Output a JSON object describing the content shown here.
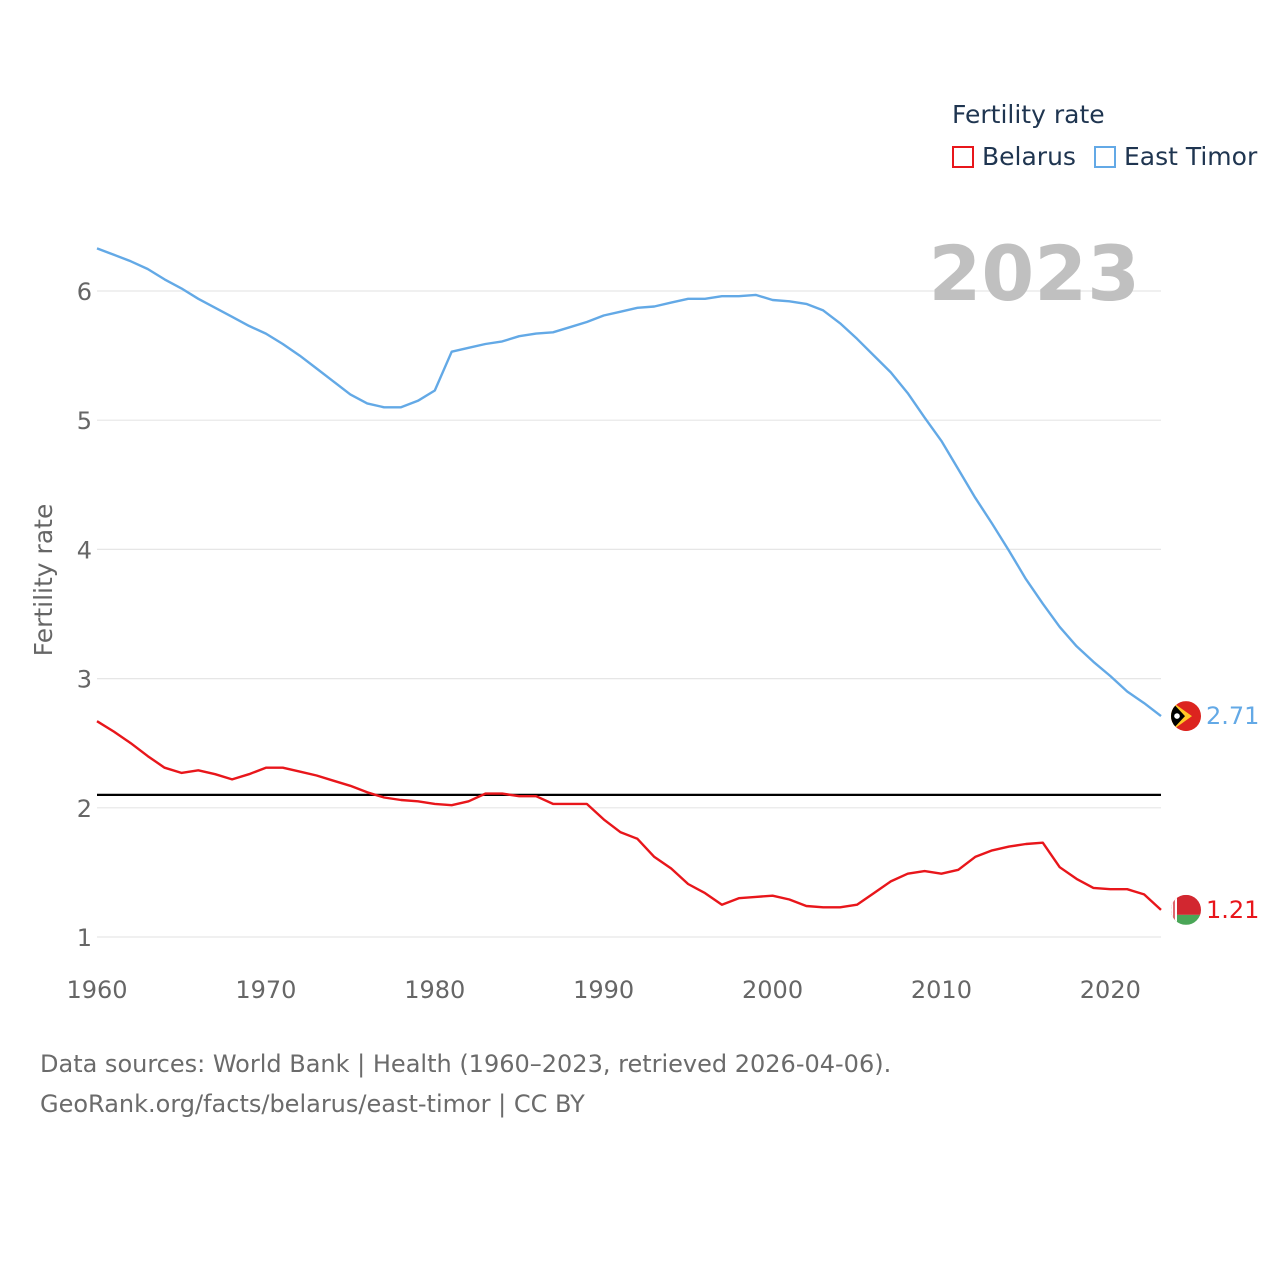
{
  "chart_data": {
    "type": "line",
    "title": "",
    "ylabel": "Fertility rate",
    "xlabel": "",
    "year_label": "2023",
    "xlim": [
      1960,
      2023
    ],
    "ylim": [
      0.8,
      6.55
    ],
    "x_ticks": [
      1960,
      1970,
      1980,
      1990,
      2000,
      2010,
      2020
    ],
    "y_ticks": [
      1,
      2,
      3,
      4,
      5,
      6
    ],
    "reference_line": 2.1,
    "legend_title": "Fertility rate",
    "series": [
      {
        "name": "Belarus",
        "color": "#e8161b",
        "end_label": "1.21",
        "x": [
          1960,
          1961,
          1962,
          1963,
          1964,
          1965,
          1966,
          1967,
          1968,
          1969,
          1970,
          1971,
          1972,
          1973,
          1974,
          1975,
          1976,
          1977,
          1978,
          1979,
          1980,
          1981,
          1982,
          1983,
          1984,
          1985,
          1986,
          1987,
          1988,
          1989,
          1990,
          1991,
          1992,
          1993,
          1994,
          1995,
          1996,
          1997,
          1998,
          1999,
          2000,
          2001,
          2002,
          2003,
          2004,
          2005,
          2006,
          2007,
          2008,
          2009,
          2010,
          2011,
          2012,
          2013,
          2014,
          2015,
          2016,
          2017,
          2018,
          2019,
          2020,
          2021,
          2022,
          2023
        ],
        "values": [
          2.67,
          2.59,
          2.5,
          2.4,
          2.31,
          2.27,
          2.29,
          2.26,
          2.22,
          2.26,
          2.31,
          2.31,
          2.28,
          2.25,
          2.21,
          2.17,
          2.12,
          2.08,
          2.06,
          2.05,
          2.03,
          2.02,
          2.05,
          2.11,
          2.11,
          2.09,
          2.09,
          2.03,
          2.03,
          2.03,
          1.91,
          1.81,
          1.76,
          1.62,
          1.53,
          1.41,
          1.34,
          1.25,
          1.3,
          1.31,
          1.32,
          1.29,
          1.24,
          1.23,
          1.23,
          1.25,
          1.34,
          1.43,
          1.49,
          1.51,
          1.49,
          1.52,
          1.62,
          1.67,
          1.7,
          1.72,
          1.73,
          1.54,
          1.45,
          1.38,
          1.37,
          1.37,
          1.33,
          1.21
        ]
      },
      {
        "name": "East Timor",
        "color": "#63a9e6",
        "end_label": "2.71",
        "x": [
          1960,
          1961,
          1962,
          1963,
          1964,
          1965,
          1966,
          1967,
          1968,
          1969,
          1970,
          1971,
          1972,
          1973,
          1974,
          1975,
          1976,
          1977,
          1978,
          1979,
          1980,
          1981,
          1982,
          1983,
          1984,
          1985,
          1986,
          1987,
          1988,
          1989,
          1990,
          1991,
          1992,
          1993,
          1994,
          1995,
          1996,
          1997,
          1998,
          1999,
          2000,
          2001,
          2002,
          2003,
          2004,
          2005,
          2006,
          2007,
          2008,
          2009,
          2010,
          2011,
          2012,
          2013,
          2014,
          2015,
          2016,
          2017,
          2018,
          2019,
          2020,
          2021,
          2022,
          2023
        ],
        "values": [
          6.33,
          6.28,
          6.23,
          6.17,
          6.09,
          6.02,
          5.94,
          5.87,
          5.8,
          5.73,
          5.67,
          5.59,
          5.5,
          5.4,
          5.3,
          5.2,
          5.13,
          5.1,
          5.1,
          5.15,
          5.23,
          5.53,
          5.56,
          5.59,
          5.61,
          5.65,
          5.67,
          5.68,
          5.72,
          5.76,
          5.81,
          5.84,
          5.87,
          5.88,
          5.91,
          5.94,
          5.94,
          5.96,
          5.96,
          5.97,
          5.93,
          5.92,
          5.9,
          5.85,
          5.75,
          5.63,
          5.5,
          5.37,
          5.21,
          5.02,
          4.84,
          4.62,
          4.4,
          4.2,
          3.99,
          3.77,
          3.58,
          3.4,
          3.25,
          3.13,
          3.02,
          2.9,
          2.81,
          2.71
        ]
      }
    ]
  },
  "footer": {
    "line1": "Data sources: World Bank | Health (1960–2023, retrieved 2026-04-06).",
    "line2": "GeoRank.org/facts/belarus/east-timor | CC BY"
  }
}
